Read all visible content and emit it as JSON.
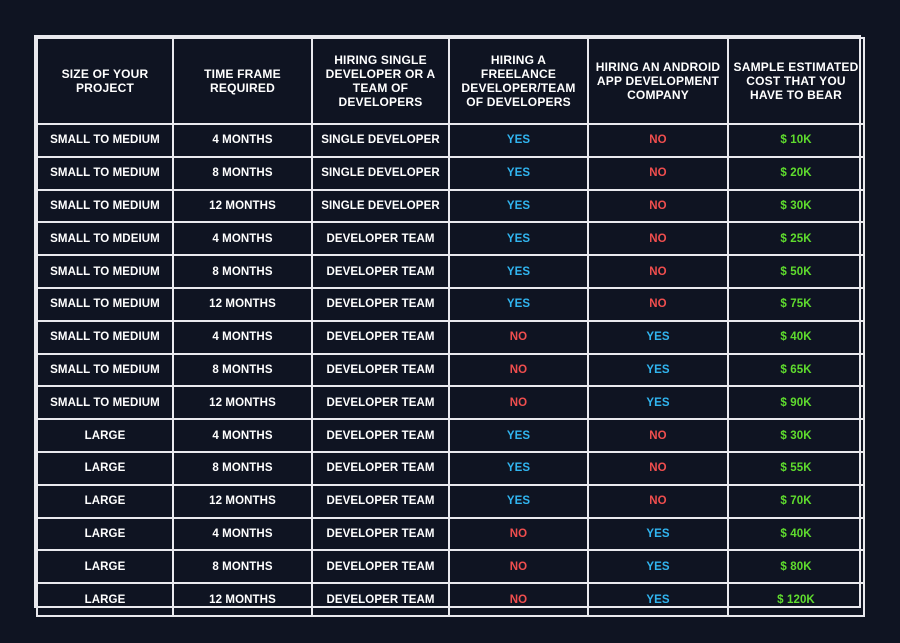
{
  "colors": {
    "background": "#0f1422",
    "grid_lines": "#e9e9ee",
    "text": "#ffffff",
    "yes": "#31b5f0",
    "no": "#f04e4e",
    "cost": "#5fdc2e"
  },
  "headers": [
    "SIZE OF YOUR PROJECT",
    "TIME FRAME REQUIRED",
    "HIRING SINGLE DEVELOPER OR A TEAM OF DEVELOPERS",
    "HIRING A FREELANCE DEVELOPER/TEAM OF DEVELOPERS",
    "HIRING AN ANDROID APP DEVELOPMENT COMPANY",
    "SAMPLE ESTIMATED COST THAT YOU HAVE TO BEAR"
  ],
  "rows": [
    [
      "SMALL TO MEDIUM",
      "4 MONTHS",
      "SINGLE DEVELOPER",
      "YES",
      "NO",
      "$ 10K"
    ],
    [
      "SMALL TO MEDIUM",
      "8 MONTHS",
      "SINGLE DEVELOPER",
      "YES",
      "NO",
      "$ 20K"
    ],
    [
      "SMALL TO MEDIUM",
      "12 MONTHS",
      "SINGLE DEVELOPER",
      "YES",
      "NO",
      "$ 30K"
    ],
    [
      "SMALL TO MDEIUM",
      "4 MONTHS",
      "DEVELOPER TEAM",
      "YES",
      "NO",
      "$ 25K"
    ],
    [
      "SMALL TO MEDIUM",
      "8 MONTHS",
      "DEVELOPER TEAM",
      "YES",
      "NO",
      "$ 50K"
    ],
    [
      "SMALL TO MEDIUM",
      "12 MONTHS",
      "DEVELOPER TEAM",
      "YES",
      "NO",
      "$ 75K"
    ],
    [
      "SMALL TO MEDIUM",
      "4 MONTHS",
      "DEVELOPER TEAM",
      "NO",
      "YES",
      "$ 40K"
    ],
    [
      "SMALL TO MEDIUM",
      "8 MONTHS",
      "DEVELOPER TEAM",
      "NO",
      "YES",
      "$ 65K"
    ],
    [
      "SMALL TO MEDIUM",
      "12 MONTHS",
      "DEVELOPER TEAM",
      "NO",
      "YES",
      "$ 90K"
    ],
    [
      "LARGE",
      "4 MONTHS",
      "DEVELOPER TEAM",
      "YES",
      "NO",
      "$ 30K"
    ],
    [
      "LARGE",
      "8 MONTHS",
      "DEVELOPER TEAM",
      "YES",
      "NO",
      "$ 55K"
    ],
    [
      "LARGE",
      "12 MONTHS",
      "DEVELOPER TEAM",
      "YES",
      "NO",
      "$ 70K"
    ],
    [
      "LARGE",
      "4 MONTHS",
      "DEVELOPER TEAM",
      "NO",
      "YES",
      "$ 40K"
    ],
    [
      "LARGE",
      "8 MONTHS",
      "DEVELOPER TEAM",
      "NO",
      "YES",
      "$ 80K"
    ],
    [
      "LARGE",
      "12 MONTHS",
      "DEVELOPER TEAM",
      "NO",
      "YES",
      "$ 120K"
    ]
  ]
}
